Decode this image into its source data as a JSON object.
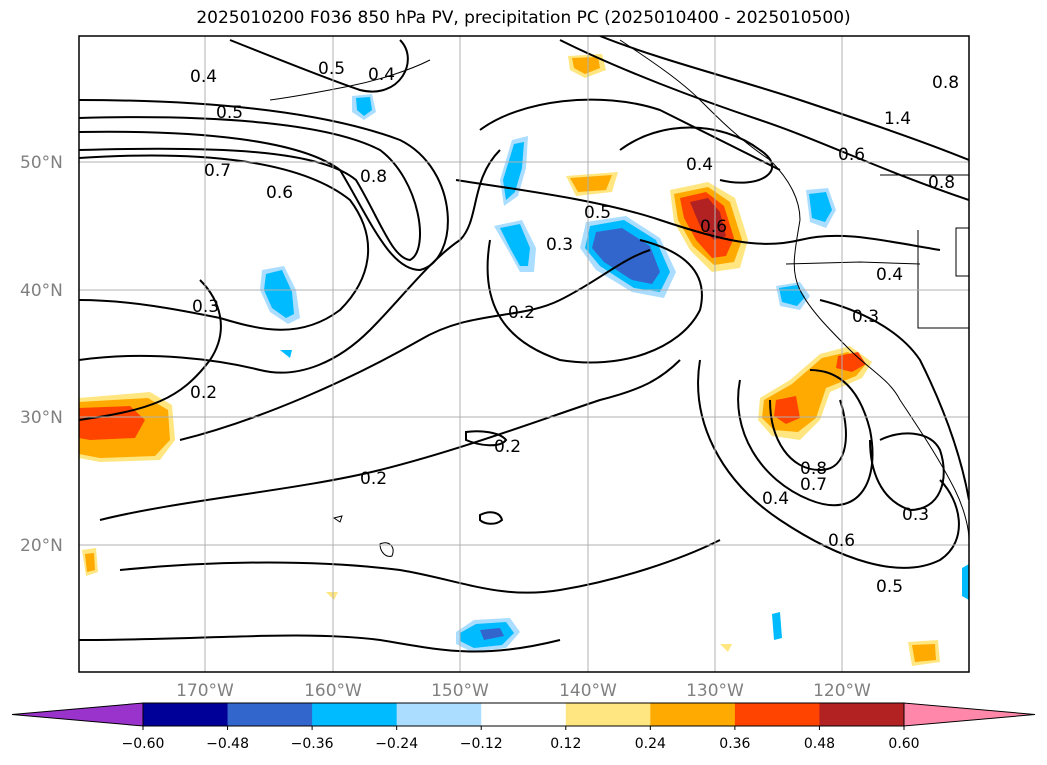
{
  "title": "2025010200 F036 850 hPa PV, precipitation PC (2025010400 - 2025010500)",
  "latitude_labels": [
    "50°N",
    "40°N",
    "30°N",
    "20°N"
  ],
  "longitude_labels": [
    "170°W",
    "160°W",
    "150°W",
    "140°W",
    "130°W",
    "120°W"
  ],
  "colorbar": {
    "tick_labels": [
      "−0.60",
      "−0.48",
      "−0.36",
      "−0.24",
      "−0.12",
      "0.12",
      "0.24",
      "0.36",
      "0.48",
      "0.60"
    ],
    "colors": [
      "#9933cc",
      "#000099",
      "#3366cc",
      "#00bbff",
      "#aaddff",
      "#ffffff",
      "#ffe680",
      "#ffaa00",
      "#ff4400",
      "#b22222",
      "#ff88aa"
    ]
  },
  "contour_labels": [
    "0.4",
    "0.5",
    "0.4",
    "0.5",
    "0.7",
    "0.6",
    "0.8",
    "0.3",
    "0.2",
    "0.5",
    "0.3",
    "0.2",
    "0.6",
    "0.4",
    "0.6",
    "0.8",
    "0.4",
    "0.3",
    "0.2",
    "0.2",
    "0.8",
    "0.7",
    "0.4",
    "0.6",
    "0.5",
    "0.3",
    "1.4",
    "0.8"
  ]
}
